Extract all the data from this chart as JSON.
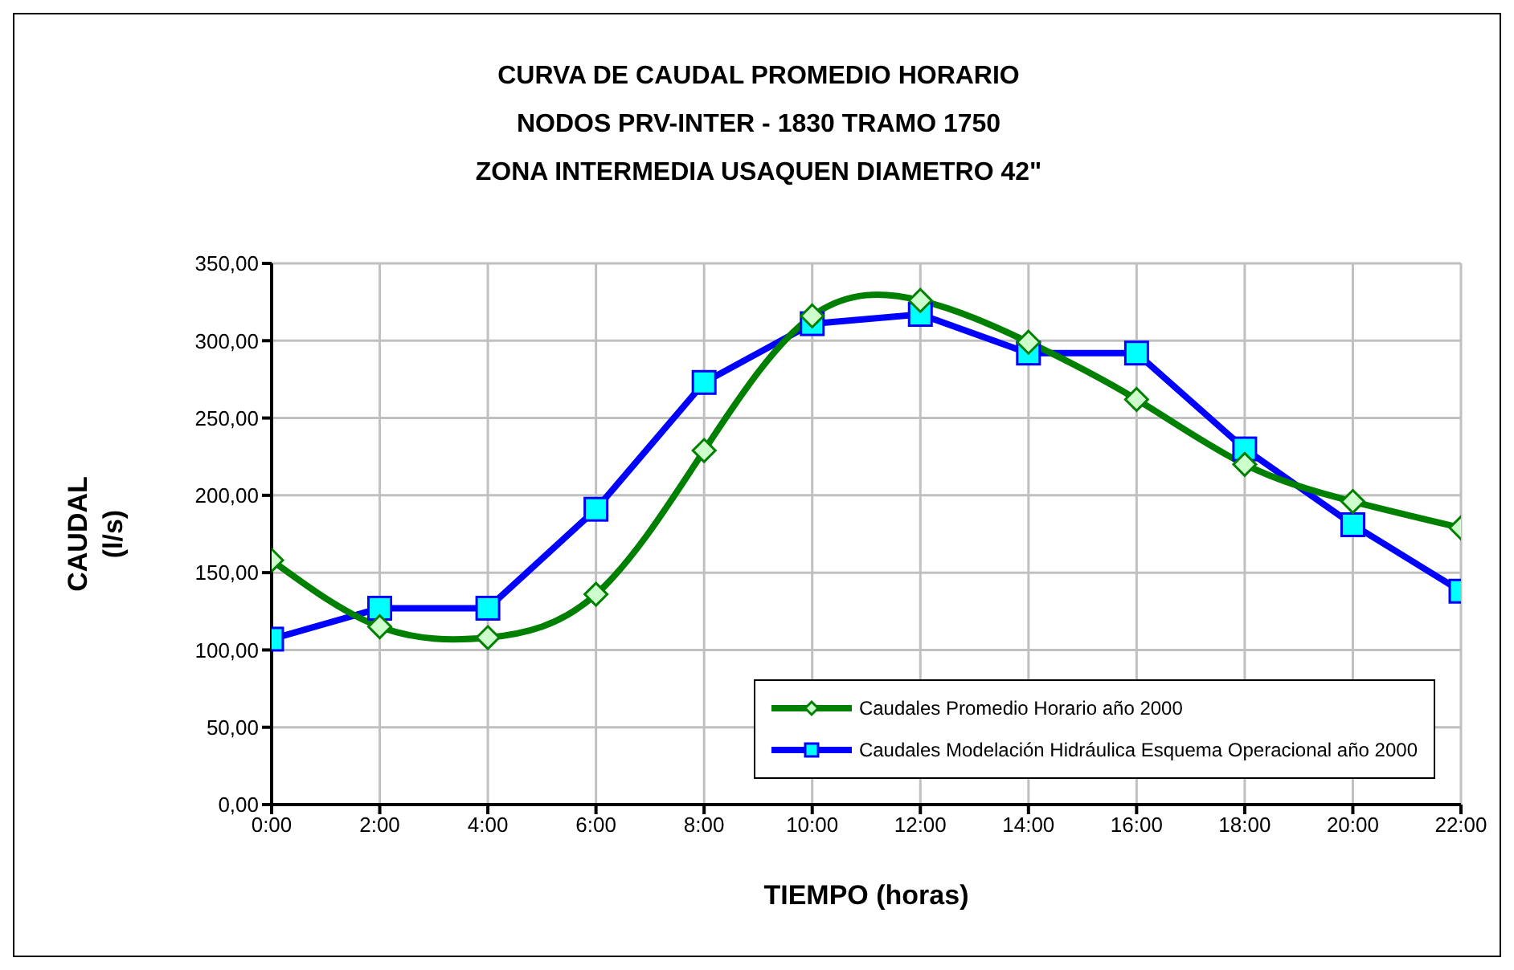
{
  "chart_data": {
    "type": "line",
    "title": "CURVA DE CAUDAL PROMEDIO HORARIO\nNODOS PRV-INTER - 1830 TRAMO 1750\nZONA INTERMEDIA  USAQUEN DIAMETRO 42\"",
    "xlabel": "TIEMPO (horas)",
    "ylabel": "CAUDAL\n(l/s)",
    "x": [
      0,
      2,
      4,
      6,
      8,
      10,
      12,
      14,
      16,
      18,
      20,
      22
    ],
    "series": [
      {
        "name": "Caudales Promedio Horario año 2000",
        "color": "#008000",
        "marker": "diamond",
        "values": [
          158,
          115,
          108,
          136,
          229,
          316,
          326,
          299,
          262,
          220,
          196,
          179
        ]
      },
      {
        "name": "Caudales Modelación Hidráulica Esquema Operacional año 2000",
        "color": "#0000ff",
        "marker": "square",
        "values": [
          107,
          127,
          127,
          191,
          273,
          311,
          317,
          292,
          292,
          230,
          181,
          138
        ]
      }
    ],
    "xlim": [
      0,
      22
    ],
    "xticks": [
      {
        "value": 0,
        "label": "0:00"
      },
      {
        "value": 2,
        "label": "2:00"
      },
      {
        "value": 4,
        "label": "4:00"
      },
      {
        "value": 6,
        "label": "6:00"
      },
      {
        "value": 8,
        "label": "8:00"
      },
      {
        "value": 10,
        "label": "10:00"
      },
      {
        "value": 12,
        "label": "12:00"
      },
      {
        "value": 14,
        "label": "14:00"
      },
      {
        "value": 16,
        "label": "16:00"
      },
      {
        "value": 18,
        "label": "18:00"
      },
      {
        "value": 20,
        "label": "20:00"
      },
      {
        "value": 22,
        "label": "22:00"
      }
    ],
    "ylim": [
      0,
      350
    ],
    "yticks": [
      {
        "value": 0,
        "label": "0,00"
      },
      {
        "value": 50,
        "label": "50,00"
      },
      {
        "value": 100,
        "label": "100,00"
      },
      {
        "value": 150,
        "label": "150,00"
      },
      {
        "value": 200,
        "label": "200,00"
      },
      {
        "value": 250,
        "label": "250,00"
      },
      {
        "value": 300,
        "label": "300,00"
      },
      {
        "value": 350,
        "label": "350,00"
      }
    ],
    "grid": true,
    "legend": "bottom right",
    "line_style": "solid"
  }
}
